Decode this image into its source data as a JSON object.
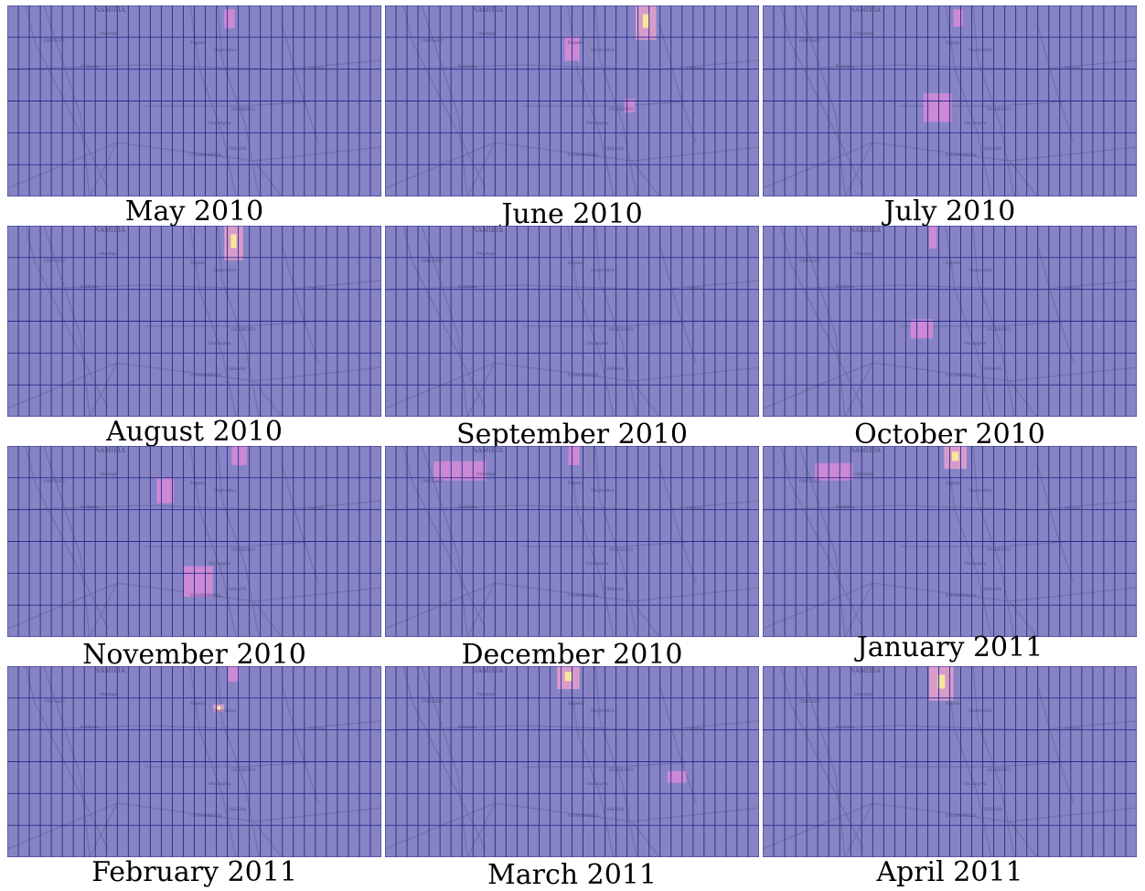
{
  "panels": [
    {
      "caption": "May 2010",
      "labels": [
        "NAMIBIA",
        "Ongenga",
        "Engela",
        "Ongwediva",
        "Eenhana",
        "Ondobe",
        "Ondangwa",
        "OSHANA",
        "OHANGWENA",
        "OMUSATI",
        "OSHIKOTO"
      ],
      "hotspots": [
        {
          "col": 0.58,
          "row": 0.02,
          "w": 0.028,
          "h": 0.1,
          "intensity": 0.5
        }
      ]
    },
    {
      "caption": "June 2010",
      "labels": [
        "NAMIBIA",
        "Ongenga",
        "Engela",
        "Ongwediva",
        "Eenhana",
        "Ondobe",
        "Ondangwa",
        "OSHANA",
        "OHANGWENA",
        "OMUSATI",
        "OSHIKOTO"
      ],
      "hotspots": [
        {
          "col": 0.48,
          "row": 0.16,
          "w": 0.04,
          "h": 0.13,
          "intensity": 0.5
        },
        {
          "col": 0.67,
          "row": 0.0,
          "w": 0.055,
          "h": 0.18,
          "intensity": 0.95
        },
        {
          "col": 0.64,
          "row": 0.49,
          "w": 0.028,
          "h": 0.07,
          "intensity": 0.5
        }
      ]
    },
    {
      "caption": "July 2010",
      "labels": [
        "NAMIBIA",
        "Ongenga",
        "Engela",
        "Ongwediva",
        "Eenhana",
        "Ondobe",
        "Ondangwa",
        "OSHANA",
        "OHANGWENA",
        "OMUSATI",
        "OSHIKOTO"
      ],
      "hotspots": [
        {
          "col": 0.51,
          "row": 0.02,
          "w": 0.025,
          "h": 0.09,
          "intensity": 0.5
        },
        {
          "col": 0.43,
          "row": 0.46,
          "w": 0.075,
          "h": 0.15,
          "intensity": 0.5
        }
      ]
    },
    {
      "caption": "August 2010",
      "labels": [
        "NAMIBIA",
        "Ongenga",
        "Engela",
        "Ongwediva",
        "Eenhana",
        "Ondobe",
        "Ondangwa",
        "OSHANA",
        "OHANGWENA",
        "OMUSATI",
        "OSHIKOTO"
      ],
      "hotspots": [
        {
          "col": 0.58,
          "row": 0.0,
          "w": 0.05,
          "h": 0.18,
          "intensity": 0.95
        }
      ]
    },
    {
      "caption": "September 2010",
      "labels": [
        "NAMIBIA",
        "Ongenga",
        "Engela",
        "Ongwediva",
        "Eenhana",
        "Ondobe",
        "Ondangwa",
        "OSHANA",
        "OHANGWENA",
        "OMUSATI",
        "OSHIKOTO"
      ],
      "hotspots": []
    },
    {
      "caption": "October 2010",
      "labels": [
        "NAMIBIA",
        "Ongenga",
        "Engela",
        "Ongwediva",
        "Eenhana",
        "Ondobe",
        "Ondangwa",
        "OSHANA",
        "OHANGWENA",
        "OMUSATI",
        "OSHIKOTO"
      ],
      "hotspots": [
        {
          "col": 0.445,
          "row": 0.0,
          "w": 0.02,
          "h": 0.12,
          "intensity": 0.55
        },
        {
          "col": 0.395,
          "row": 0.49,
          "w": 0.06,
          "h": 0.1,
          "intensity": 0.5
        }
      ]
    },
    {
      "caption": "November 2010",
      "labels": [
        "NAMIBIA",
        "Ongenga",
        "Engela",
        "Ongwediva",
        "Eenhana",
        "Ondobe",
        "Ondangwa",
        "OSHANA",
        "OHANGWENA",
        "OMUSATI",
        "OSHIKOTO"
      ],
      "hotspots": [
        {
          "col": 0.6,
          "row": 0.0,
          "w": 0.04,
          "h": 0.1,
          "intensity": 0.5
        },
        {
          "col": 0.4,
          "row": 0.17,
          "w": 0.045,
          "h": 0.13,
          "intensity": 0.5
        },
        {
          "col": 0.47,
          "row": 0.63,
          "w": 0.08,
          "h": 0.16,
          "intensity": 0.8
        }
      ]
    },
    {
      "caption": "December 2010",
      "labels": [
        "NAMIBIA",
        "Ongenga",
        "Engela",
        "Ongwediva",
        "Eenhana",
        "Ondobe",
        "Ondangwa",
        "OSHANA",
        "OHANGWENA",
        "OMUSATI",
        "OSHIKOTO"
      ],
      "hotspots": [
        {
          "col": 0.13,
          "row": 0.08,
          "w": 0.14,
          "h": 0.1,
          "intensity": 0.6
        },
        {
          "col": 0.49,
          "row": 0.0,
          "w": 0.03,
          "h": 0.1,
          "intensity": 0.5
        }
      ]
    },
    {
      "caption": "January 2011",
      "labels": [
        "NAMIBIA",
        "Ongenga",
        "Engela",
        "Ongwediva",
        "Eenhana",
        "Ondobe",
        "Ondangwa",
        "OSHANA",
        "OHANGWENA",
        "OMUSATI",
        "OSHIKOTO"
      ],
      "hotspots": [
        {
          "col": 0.14,
          "row": 0.09,
          "w": 0.1,
          "h": 0.09,
          "intensity": 0.6
        },
        {
          "col": 0.485,
          "row": 0.0,
          "w": 0.06,
          "h": 0.12,
          "intensity": 0.95
        }
      ]
    },
    {
      "caption": "February 2011",
      "labels": [
        "NAMIBIA",
        "Ongenga",
        "Engela",
        "Ongwediva",
        "Eenhana",
        "Ondobe",
        "Ondangwa",
        "OSHANA",
        "OHANGWENA",
        "OMUSATI",
        "OSHIKOTO"
      ],
      "hotspots": [
        {
          "col": 0.59,
          "row": 0.0,
          "w": 0.03,
          "h": 0.08,
          "intensity": 0.5
        },
        {
          "col": 0.55,
          "row": 0.2,
          "w": 0.03,
          "h": 0.04,
          "intensity": 0.95
        }
      ]
    },
    {
      "caption": "March 2011",
      "labels": [
        "NAMIBIA",
        "Ongenga",
        "Engela",
        "Ongwediva",
        "Eenhana",
        "Ondobe",
        "Ondangwa",
        "OSHANA",
        "OHANGWENA",
        "OMUSATI",
        "OSHIKOTO"
      ],
      "hotspots": [
        {
          "col": 0.46,
          "row": 0.0,
          "w": 0.06,
          "h": 0.12,
          "intensity": 0.95
        },
        {
          "col": 0.755,
          "row": 0.55,
          "w": 0.05,
          "h": 0.06,
          "intensity": 0.5
        }
      ]
    },
    {
      "caption": "April 2011",
      "labels": [
        "NAMIBIA",
        "Ongenga",
        "Engela",
        "Ongwediva",
        "Eenhana",
        "Ondobe",
        "Ondangwa",
        "OSHANA",
        "OHANGWENA",
        "OMUSATI",
        "OSHIKOTO"
      ],
      "hotspots": [
        {
          "col": 0.445,
          "row": 0.0,
          "w": 0.065,
          "h": 0.18,
          "intensity": 0.9
        }
      ]
    }
  ],
  "colors": {
    "base": "#8784c4",
    "grid": "#2a2a8c",
    "feature": "#6e6ca8",
    "hot_low": "#d88ad8",
    "hot_mid": "#e6a0cc",
    "hot_high": "#f6e79a"
  }
}
